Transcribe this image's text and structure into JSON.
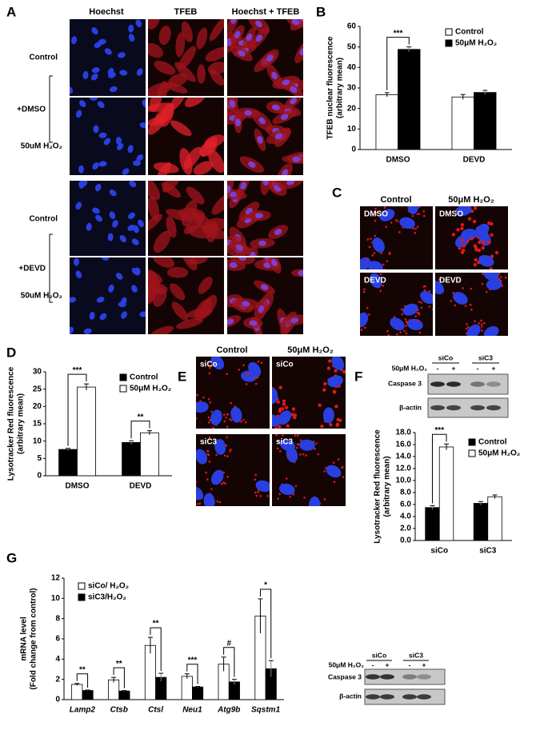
{
  "panel_labels": [
    "A",
    "B",
    "C",
    "D",
    "E",
    "F",
    "G"
  ],
  "panel_a": {
    "columns": [
      "Hoechst",
      "TFEB",
      "Hoechst + TFEB"
    ],
    "rows": [
      "Control",
      "50uM H₂O₂",
      "Control",
      "50uM H₂O₂"
    ],
    "groups": [
      "+DMSO",
      "+DEVD"
    ]
  },
  "panel_c": {
    "columns": [
      "Control",
      "50μM H₂O₂"
    ],
    "image_labels": [
      "DMSO",
      "DMSO",
      "DEVD",
      "DEVD"
    ]
  },
  "panel_e": {
    "columns": [
      "Control",
      "50μM H₂O₂"
    ],
    "image_labels": [
      "siCo",
      "siCo",
      "siC3",
      "siC3"
    ]
  },
  "panel_f_blot": {
    "groups": [
      "siCo",
      "siC3"
    ],
    "treatment": "50μM H₂O₂",
    "signs": [
      "-",
      "+",
      "-",
      "+"
    ],
    "bands": [
      "Caspase 3",
      "β-actin"
    ]
  },
  "panel_g_blot": {
    "groups": [
      "siCo",
      "siC3"
    ],
    "treatment": "50μM H₂O₂",
    "signs": [
      "-",
      "+",
      "-",
      "+"
    ],
    "bands": [
      "Caspase 3",
      "β-actin"
    ]
  },
  "chart_data": [
    {
      "type": "bar",
      "ylabel": [
        "TFEB nuclear fluorescence",
        "(arbitrary mean)"
      ],
      "categories": [
        "DMSO",
        "DEVD"
      ],
      "series": [
        {
          "name": "Control",
          "color": "#ffffff",
          "values": [
            26.7,
            25.6
          ],
          "errors": [
            1.0,
            1.2
          ]
        },
        {
          "name": "50μM H₂O₂",
          "color": "#000000",
          "values": [
            48.8,
            27.8
          ],
          "errors": [
            1.2,
            1.0
          ]
        }
      ],
      "annotations": [
        "***",
        null
      ],
      "ylim": [
        0,
        60
      ],
      "yticks": [
        0,
        10,
        20,
        30,
        40,
        50,
        60
      ]
    },
    {
      "type": "bar",
      "ylabel": [
        "Lysotracker Red fluorescence",
        "(arbitrary mean)"
      ],
      "categories": [
        "DMSO",
        "DEVD"
      ],
      "series": [
        {
          "name": "Control",
          "color": "#000000",
          "values": [
            7.6,
            9.6
          ],
          "errors": [
            0.3,
            0.5
          ]
        },
        {
          "name": "50μM H₂O₂",
          "color": "#ffffff",
          "values": [
            25.6,
            12.4
          ],
          "errors": [
            0.9,
            0.6
          ]
        }
      ],
      "annotations": [
        "***",
        "**"
      ],
      "ylim": [
        0,
        30
      ],
      "yticks": [
        0,
        5,
        10,
        15,
        20,
        25,
        30
      ]
    },
    {
      "type": "bar",
      "ylabel": [
        "Lysotracker Red fluorescence",
        "(arbitrary mean)"
      ],
      "categories": [
        "siCo",
        "siC3"
      ],
      "series": [
        {
          "name": "Control",
          "color": "#000000",
          "values": [
            5.5,
            6.2
          ],
          "errors": [
            0.3,
            0.3
          ]
        },
        {
          "name": "50μM H₂O₂",
          "color": "#ffffff",
          "values": [
            15.6,
            7.3
          ],
          "errors": [
            0.5,
            0.3
          ]
        }
      ],
      "annotations": [
        "***",
        null
      ],
      "ylim": [
        0,
        18
      ],
      "yticks": [
        {
          "value": 0,
          "label": "0.0"
        },
        {
          "value": 2,
          "label": "2.0"
        },
        {
          "value": 4,
          "label": "4.0"
        },
        {
          "value": 6,
          "label": "6.0"
        },
        {
          "value": 8,
          "label": "8.0"
        },
        {
          "value": 10,
          "label": "10.0"
        },
        {
          "value": 12,
          "label": "12.0"
        },
        {
          "value": 14,
          "label": "14.0"
        },
        {
          "value": 16,
          "label": "16.0"
        },
        {
          "value": 18,
          "label": "18.0"
        }
      ]
    },
    {
      "type": "bar",
      "ylabel": [
        "mRNA level",
        "(Fold change from control)"
      ],
      "categories": [
        "Lamp2",
        "Ctsb",
        "Ctsl",
        "Neu1",
        "Atg9b",
        "Sqstm1"
      ],
      "italic_categories": true,
      "series": [
        {
          "name": "siCo/ H₂O₂",
          "color": "#ffffff",
          "values": [
            1.5,
            1.95,
            5.35,
            2.3,
            3.5,
            8.25
          ],
          "errors": [
            0.1,
            0.25,
            0.8,
            0.25,
            0.7,
            1.7
          ]
        },
        {
          "name": "siC3/H₂O₂",
          "color": "#000000",
          "values": [
            0.9,
            0.85,
            2.2,
            1.25,
            1.75,
            3.05
          ],
          "errors": [
            0.05,
            0.05,
            0.4,
            0.05,
            0.25,
            0.8
          ]
        }
      ],
      "annotations": [
        "**",
        "**",
        "**",
        "***",
        "#",
        "*"
      ],
      "ylim": [
        0,
        12
      ],
      "yticks": [
        0,
        2,
        4,
        6,
        8,
        10,
        12
      ]
    }
  ]
}
